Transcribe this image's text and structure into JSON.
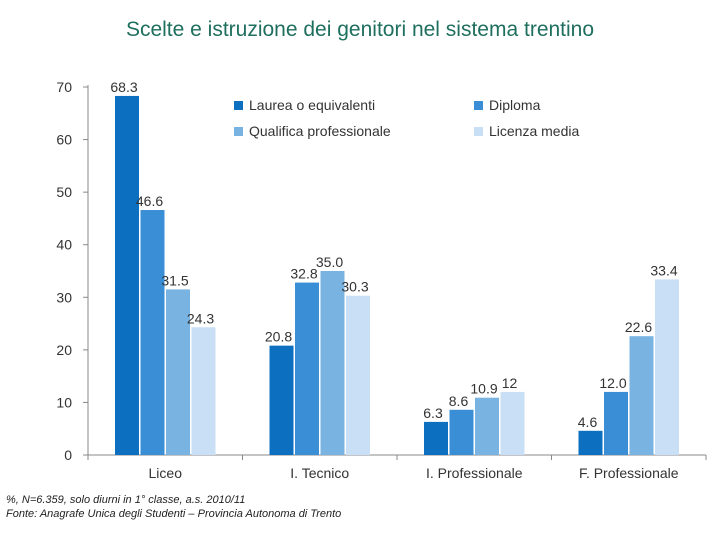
{
  "title": "Scelte e istruzione dei genitori nel sistema trentino",
  "chart_data": {
    "type": "bar",
    "title": "Scelte e istruzione dei genitori nel sistema trentino",
    "categories": [
      "Liceo",
      "I. Tecnico",
      "I. Professionale",
      "F. Professionale"
    ],
    "series": [
      {
        "name": "Laurea o equivalenti",
        "color": "#0c6fc0",
        "values": [
          68.3,
          20.8,
          6.3,
          4.6
        ]
      },
      {
        "name": "Diploma",
        "color": "#3a8ed6",
        "values": [
          46.6,
          32.8,
          8.6,
          12.0
        ]
      },
      {
        "name": "Qualifica professionale",
        "color": "#78b3e2",
        "values": [
          31.5,
          35.0,
          10.9,
          22.6
        ]
      },
      {
        "name": "Licenza media",
        "color": "#c8dff5",
        "values": [
          24.3,
          30.3,
          12.0,
          33.4
        ]
      }
    ],
    "value_labels": [
      [
        "68.3",
        "20.8",
        "6.3",
        "4.6"
      ],
      [
        "46.6",
        "32.8",
        "8.6",
        "12.0"
      ],
      [
        "31.5",
        "35.0",
        "10.9",
        "22.6"
      ],
      [
        "24.3",
        "30.3",
        "12",
        "33.4"
      ]
    ],
    "y_ticks": [
      0,
      10,
      20,
      30,
      40,
      50,
      60,
      70
    ],
    "ylim": [
      0,
      70
    ],
    "xlabel": "",
    "ylabel": "",
    "legend_position": "top-right",
    "grid": false
  },
  "footnote": {
    "line1": "%, N=6.359, solo diurni in 1° classe, a.s. 2010/11",
    "line2": "Fonte: Anagrafe Unica degli Studenti – Provincia Autonoma di Trento"
  }
}
